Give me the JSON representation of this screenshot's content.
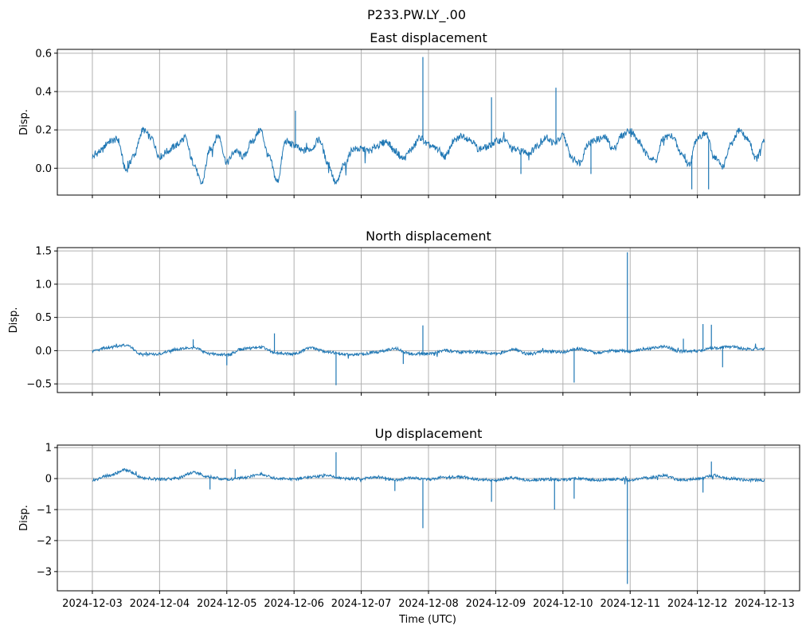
{
  "figure_title": "P233.PW.LY_.00",
  "xlabel": "Time (UTC)",
  "x_tick_labels": [
    "2024-12-03",
    "2024-12-04",
    "2024-12-05",
    "2024-12-06",
    "2024-12-07",
    "2024-12-08",
    "2024-12-09",
    "2024-12-10",
    "2024-12-11",
    "2024-12-12",
    "2024-12-13"
  ],
  "colors": {
    "series": "#1f77b4",
    "grid": "#b0b0b0",
    "axes": "#000000"
  },
  "chart_data": [
    {
      "type": "line",
      "title": "East displacement",
      "ylabel": "Disp.",
      "xlabel": "",
      "grid": true,
      "xlim": [
        "2024-12-02T11:30",
        "2024-12-13T12:30"
      ],
      "ylim": [
        -0.14,
        0.62
      ],
      "yticks": [
        0.0,
        0.2,
        0.4,
        0.6
      ],
      "ytick_labels": [
        "0.0",
        "0.2",
        "0.4",
        "0.6"
      ],
      "series": [
        {
          "x": [
            "2024-12-03T00:00",
            "2024-12-03T03:00",
            "2024-12-03T06:00",
            "2024-12-03T09:00",
            "2024-12-03T12:00",
            "2024-12-03T15:00",
            "2024-12-03T18:00",
            "2024-12-03T21:00",
            "2024-12-04T00:00",
            "2024-12-04T03:00",
            "2024-12-04T06:00",
            "2024-12-04T09:00",
            "2024-12-04T12:00",
            "2024-12-04T15:00",
            "2024-12-04T18:00",
            "2024-12-04T21:00",
            "2024-12-05T00:00",
            "2024-12-05T03:00",
            "2024-12-05T06:00",
            "2024-12-05T09:00",
            "2024-12-05T12:00",
            "2024-12-05T15:00",
            "2024-12-05T18:00",
            "2024-12-05T21:00",
            "2024-12-06T00:00",
            "2024-12-06T03:00",
            "2024-12-06T06:00",
            "2024-12-06T09:00",
            "2024-12-06T12:00",
            "2024-12-06T15:00",
            "2024-12-06T18:00",
            "2024-12-06T21:00",
            "2024-12-07T00:00",
            "2024-12-07T03:00",
            "2024-12-07T06:00",
            "2024-12-07T09:00",
            "2024-12-07T12:00",
            "2024-12-07T15:00",
            "2024-12-07T18:00",
            "2024-12-07T21:00",
            "2024-12-08T00:00",
            "2024-12-08T03:00",
            "2024-12-08T06:00",
            "2024-12-08T09:00",
            "2024-12-08T12:00",
            "2024-12-08T15:00",
            "2024-12-08T18:00",
            "2024-12-08T21:00",
            "2024-12-09T00:00",
            "2024-12-09T03:00",
            "2024-12-09T06:00",
            "2024-12-09T09:00",
            "2024-12-09T12:00",
            "2024-12-09T15:00",
            "2024-12-09T18:00",
            "2024-12-09T21:00",
            "2024-12-10T00:00",
            "2024-12-10T03:00",
            "2024-12-10T06:00",
            "2024-12-10T09:00",
            "2024-12-10T12:00",
            "2024-12-10T15:00",
            "2024-12-10T18:00",
            "2024-12-10T21:00",
            "2024-12-11T00:00",
            "2024-12-11T03:00",
            "2024-12-11T06:00",
            "2024-12-11T09:00",
            "2024-12-11T12:00",
            "2024-12-11T15:00",
            "2024-12-11T18:00",
            "2024-12-11T21:00",
            "2024-12-12T00:00",
            "2024-12-12T03:00",
            "2024-12-12T06:00",
            "2024-12-12T09:00",
            "2024-12-12T12:00",
            "2024-12-12T15:00",
            "2024-12-12T18:00",
            "2024-12-12T21:00",
            "2024-12-13T00:00"
          ],
          "y": [
            0.06,
            0.09,
            0.14,
            0.15,
            -0.01,
            0.07,
            0.2,
            0.16,
            0.06,
            0.09,
            0.12,
            0.16,
            0.03,
            -0.08,
            0.1,
            0.17,
            0.03,
            0.09,
            0.06,
            0.14,
            0.2,
            0.06,
            -0.07,
            0.14,
            0.12,
            0.09,
            0.1,
            0.15,
            0.03,
            -0.08,
            0.02,
            0.1,
            0.1,
            0.09,
            0.12,
            0.14,
            0.09,
            0.05,
            0.1,
            0.16,
            0.12,
            0.1,
            0.06,
            0.14,
            0.17,
            0.15,
            0.1,
            0.11,
            0.14,
            0.15,
            0.1,
            0.09,
            0.08,
            0.12,
            0.16,
            0.13,
            0.17,
            0.06,
            0.03,
            0.13,
            0.15,
            0.16,
            0.1,
            0.17,
            0.2,
            0.14,
            0.07,
            0.04,
            0.16,
            0.17,
            0.08,
            0.02,
            0.16,
            0.18,
            0.06,
            0.01,
            0.12,
            0.2,
            0.15,
            0.05,
            0.14
          ],
          "spikes": [
            [
              "2024-12-07T22:00",
              0.58
            ],
            [
              "2024-12-08T22:30",
              0.37
            ],
            [
              "2024-12-09T21:30",
              0.42
            ],
            [
              "2024-12-06T00:30",
              0.3
            ],
            [
              "2024-12-11T22:00",
              -0.11
            ],
            [
              "2024-12-12T04:00",
              -0.11
            ],
            [
              "2024-12-09T09:00",
              -0.03
            ],
            [
              "2024-12-10T10:00",
              -0.03
            ]
          ]
        }
      ]
    },
    {
      "type": "line",
      "title": "North displacement",
      "ylabel": "Disp.",
      "xlabel": "",
      "grid": true,
      "xlim": [
        "2024-12-02T11:30",
        "2024-12-13T12:30"
      ],
      "ylim": [
        -0.63,
        1.55
      ],
      "yticks": [
        -0.5,
        0.0,
        0.5,
        1.0,
        1.5
      ],
      "ytick_labels": [
        "−0.5",
        "0.0",
        "0.5",
        "1.0",
        "1.5"
      ],
      "series": [
        {
          "x": [
            "2024-12-03T00:00",
            "2024-12-03T06:00",
            "2024-12-03T12:00",
            "2024-12-03T18:00",
            "2024-12-04T00:00",
            "2024-12-04T06:00",
            "2024-12-04T12:00",
            "2024-12-04T18:00",
            "2024-12-05T00:00",
            "2024-12-05T06:00",
            "2024-12-05T12:00",
            "2024-12-05T18:00",
            "2024-12-06T00:00",
            "2024-12-06T06:00",
            "2024-12-06T12:00",
            "2024-12-06T18:00",
            "2024-12-07T00:00",
            "2024-12-07T06:00",
            "2024-12-07T12:00",
            "2024-12-07T18:00",
            "2024-12-08T00:00",
            "2024-12-08T06:00",
            "2024-12-08T12:00",
            "2024-12-08T18:00",
            "2024-12-09T00:00",
            "2024-12-09T06:00",
            "2024-12-09T12:00",
            "2024-12-09T18:00",
            "2024-12-10T00:00",
            "2024-12-10T06:00",
            "2024-12-10T12:00",
            "2024-12-10T18:00",
            "2024-12-11T00:00",
            "2024-12-11T06:00",
            "2024-12-11T12:00",
            "2024-12-11T18:00",
            "2024-12-12T00:00",
            "2024-12-12T06:00",
            "2024-12-12T12:00",
            "2024-12-12T18:00",
            "2024-12-13T00:00"
          ],
          "y": [
            -0.01,
            0.05,
            0.08,
            -0.06,
            -0.05,
            0.02,
            0.05,
            -0.05,
            -0.06,
            0.03,
            0.05,
            -0.04,
            -0.05,
            0.04,
            -0.02,
            -0.06,
            -0.05,
            -0.02,
            0.03,
            -0.05,
            -0.05,
            0.0,
            -0.02,
            -0.02,
            -0.05,
            0.02,
            -0.05,
            -0.01,
            -0.02,
            0.03,
            -0.03,
            0.0,
            -0.01,
            0.03,
            0.06,
            -0.01,
            0.0,
            0.04,
            0.06,
            0.02,
            0.03
          ],
          "spikes": [
            [
              "2024-12-10T23:00",
              1.48
            ],
            [
              "2024-12-07T22:00",
              0.38
            ],
            [
              "2024-12-06T15:00",
              -0.52
            ],
            [
              "2024-12-10T04:00",
              -0.48
            ],
            [
              "2024-12-12T02:00",
              0.4
            ],
            [
              "2024-12-12T05:00",
              0.39
            ],
            [
              "2024-12-05T17:00",
              0.26
            ],
            [
              "2024-12-04T12:00",
              0.17
            ],
            [
              "2024-12-11T19:00",
              0.18
            ],
            [
              "2024-12-05T00:00",
              -0.22
            ],
            [
              "2024-12-12T09:00",
              -0.25
            ],
            [
              "2024-12-07T15:00",
              -0.2
            ]
          ]
        }
      ]
    },
    {
      "type": "line",
      "title": "Up displacement",
      "ylabel": "Disp.",
      "xlabel": "",
      "grid": true,
      "xlim": [
        "2024-12-02T11:30",
        "2024-12-13T12:30"
      ],
      "ylim": [
        -3.62,
        1.08
      ],
      "yticks": [
        -3,
        -2,
        -1,
        0,
        1
      ],
      "ytick_labels": [
        "−3",
        "−2",
        "−1",
        "0",
        "1"
      ],
      "series": [
        {
          "x": [
            "2024-12-03T00:00",
            "2024-12-03T06:00",
            "2024-12-03T12:00",
            "2024-12-03T18:00",
            "2024-12-04T00:00",
            "2024-12-04T06:00",
            "2024-12-04T12:00",
            "2024-12-04T18:00",
            "2024-12-05T00:00",
            "2024-12-05T06:00",
            "2024-12-05T12:00",
            "2024-12-05T18:00",
            "2024-12-06T00:00",
            "2024-12-06T06:00",
            "2024-12-06T12:00",
            "2024-12-06T18:00",
            "2024-12-07T00:00",
            "2024-12-07T06:00",
            "2024-12-07T12:00",
            "2024-12-07T18:00",
            "2024-12-08T00:00",
            "2024-12-08T06:00",
            "2024-12-08T12:00",
            "2024-12-08T18:00",
            "2024-12-09T00:00",
            "2024-12-09T06:00",
            "2024-12-09T12:00",
            "2024-12-09T18:00",
            "2024-12-10T00:00",
            "2024-12-10T06:00",
            "2024-12-10T12:00",
            "2024-12-10T18:00",
            "2024-12-11T00:00",
            "2024-12-11T06:00",
            "2024-12-11T12:00",
            "2024-12-11T18:00",
            "2024-12-12T00:00",
            "2024-12-12T06:00",
            "2024-12-12T12:00",
            "2024-12-12T18:00",
            "2024-12-13T00:00"
          ],
          "y": [
            -0.05,
            0.1,
            0.28,
            0.02,
            -0.02,
            0.0,
            0.2,
            0.05,
            -0.02,
            0.02,
            0.15,
            0.0,
            -0.02,
            0.05,
            0.1,
            0.0,
            0.0,
            0.05,
            -0.05,
            0.02,
            -0.02,
            0.05,
            0.05,
            -0.03,
            -0.05,
            0.02,
            -0.05,
            -0.02,
            -0.05,
            0.0,
            -0.05,
            -0.02,
            -0.05,
            0.02,
            0.1,
            -0.05,
            0.0,
            0.1,
            0.0,
            -0.05,
            -0.05
          ],
          "spikes": [
            [
              "2024-12-10T23:00",
              -3.4
            ],
            [
              "2024-12-07T22:00",
              -1.6
            ],
            [
              "2024-12-06T15:00",
              0.85
            ],
            [
              "2024-12-08T22:30",
              -0.75
            ],
            [
              "2024-12-09T21:00",
              -1.0
            ],
            [
              "2024-12-10T04:00",
              -0.65
            ],
            [
              "2024-12-12T05:00",
              0.55
            ],
            [
              "2024-12-07T12:00",
              -0.4
            ],
            [
              "2024-12-04T18:00",
              -0.35
            ],
            [
              "2024-12-05T03:00",
              0.3
            ],
            [
              "2024-12-12T02:00",
              -0.45
            ]
          ]
        }
      ]
    }
  ]
}
